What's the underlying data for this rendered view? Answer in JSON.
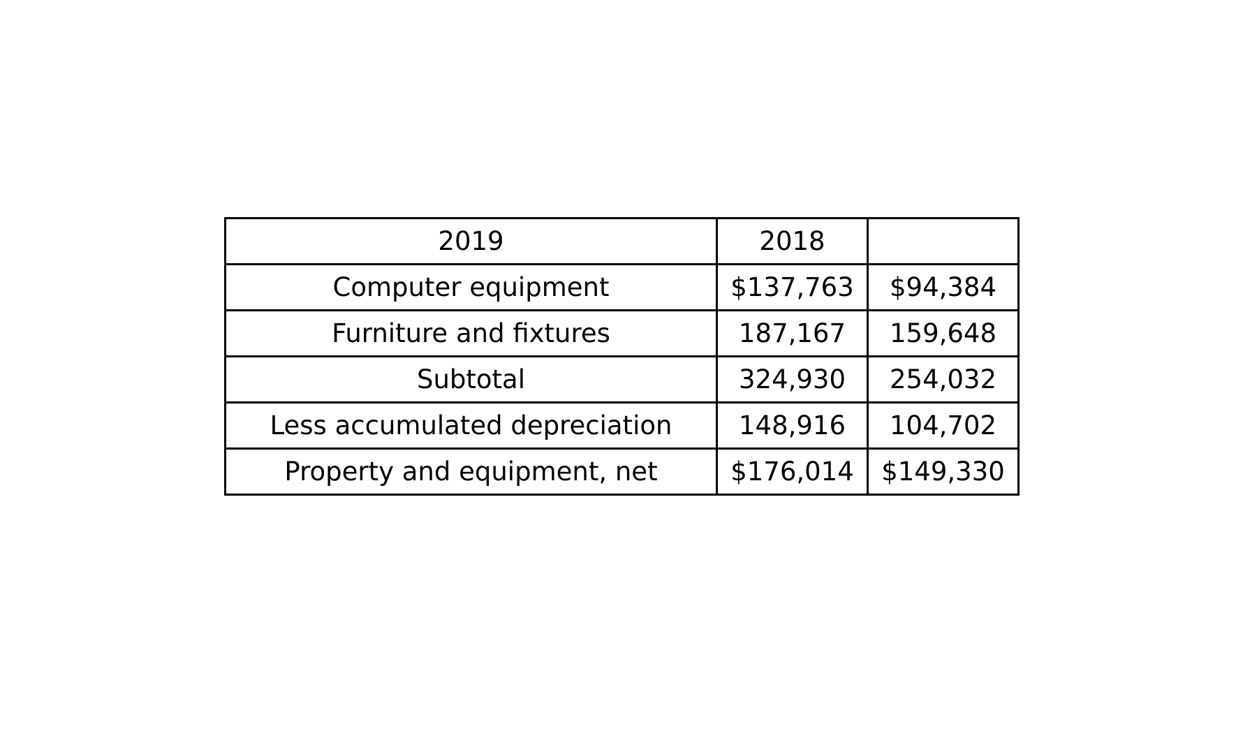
{
  "chart_data": {
    "type": "table",
    "columns": [
      "2019",
      "2018",
      ""
    ],
    "rows": [
      [
        "Computer equipment",
        "$137,763",
        "$94,384"
      ],
      [
        "Furniture and fixtures",
        "187,167",
        "159,648"
      ],
      [
        "Subtotal",
        "324,930",
        "254,032"
      ],
      [
        "Less accumulated depreciation",
        "148,916",
        "104,702"
      ],
      [
        "Property and equipment, net",
        "$176,014",
        "$149,330"
      ]
    ]
  }
}
